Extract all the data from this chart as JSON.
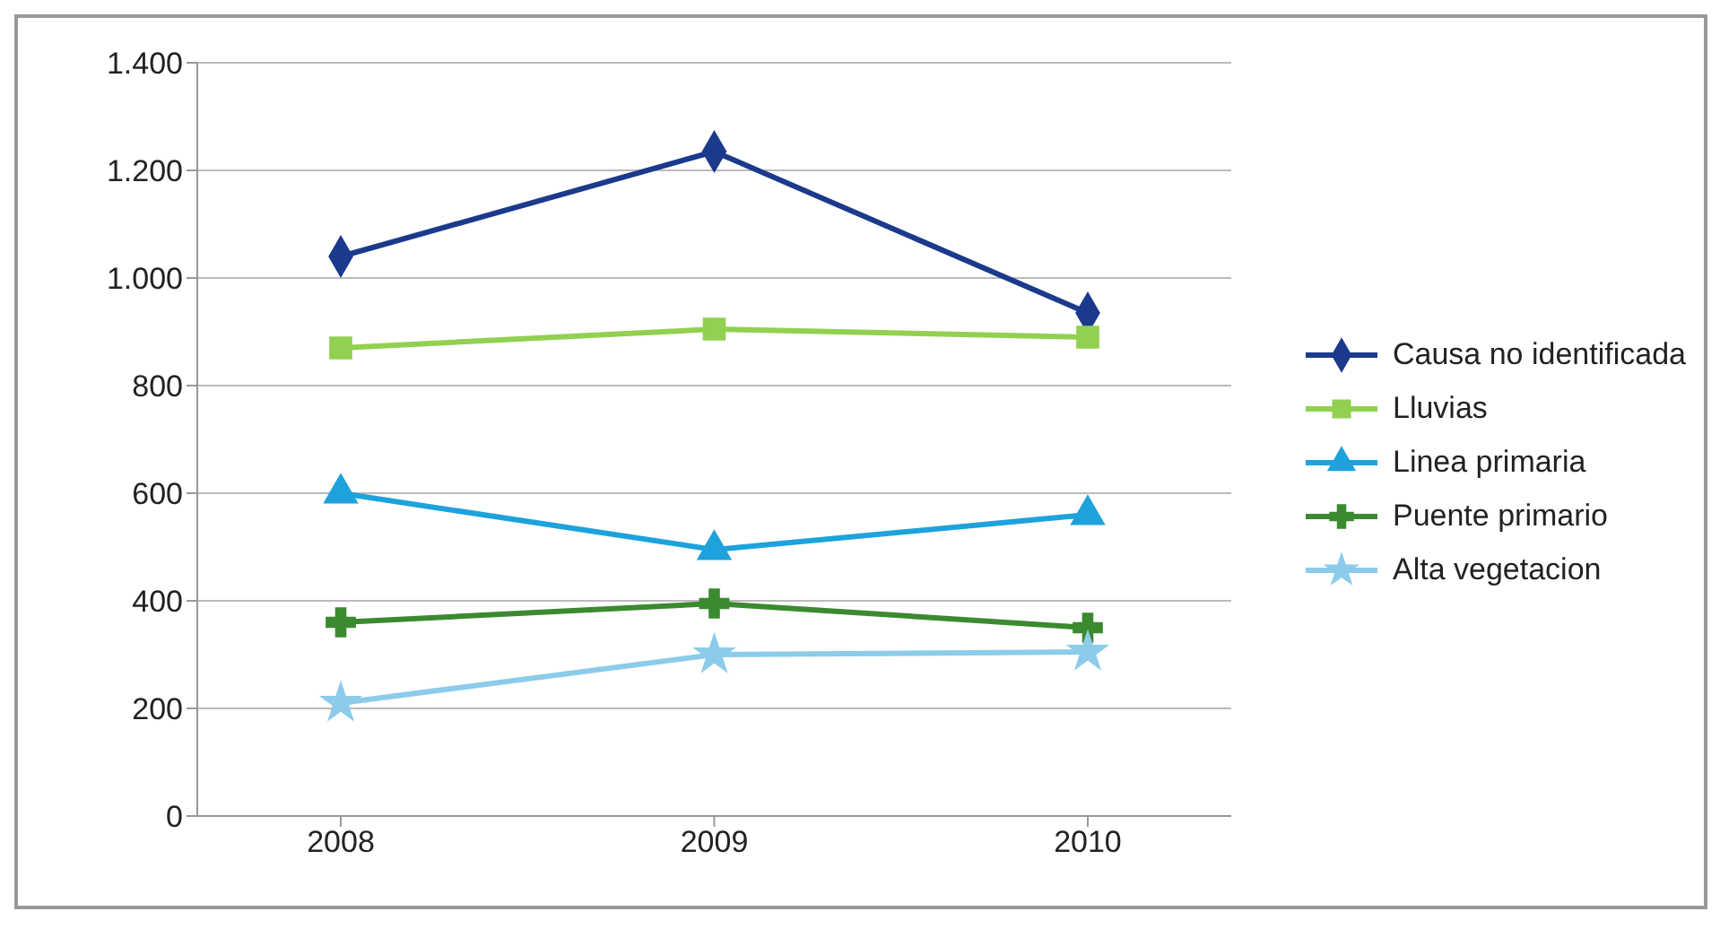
{
  "chart_data": {
    "type": "line",
    "categories": [
      "2008",
      "2009",
      "2010"
    ],
    "series": [
      {
        "name": "Causa no identificada",
        "color": "#1b3a8c",
        "marker": "diamond",
        "values": [
          1040,
          1235,
          935
        ]
      },
      {
        "name": "Lluvias",
        "color": "#92d050",
        "marker": "square",
        "values": [
          870,
          905,
          890
        ]
      },
      {
        "name": "Linea primaria",
        "color": "#1ea2dc",
        "marker": "triangle",
        "values": [
          600,
          495,
          560
        ]
      },
      {
        "name": "Puente primario",
        "color": "#3b8a2f",
        "marker": "cross",
        "values": [
          360,
          395,
          350
        ]
      },
      {
        "name": "Alta vegetacion",
        "color": "#8ccbea",
        "marker": "star",
        "values": [
          210,
          300,
          305
        ]
      }
    ],
    "ylim": [
      0,
      1400
    ],
    "yticks": [
      0,
      200,
      400,
      600,
      800,
      {
        "value": 1000,
        "label": "1.000"
      },
      {
        "value": 1200,
        "label": "1.200"
      },
      {
        "value": 1400,
        "label": "1.400"
      }
    ],
    "grid": "y",
    "legend": "right"
  }
}
